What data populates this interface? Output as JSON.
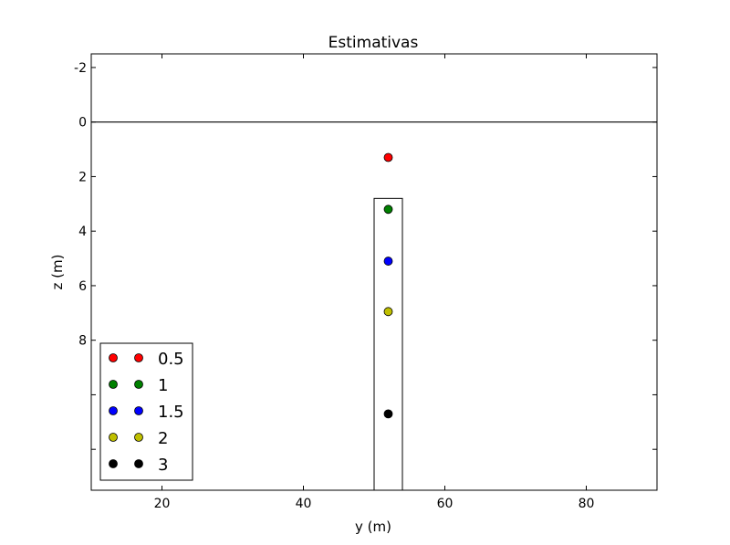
{
  "chart_data": {
    "type": "scatter",
    "title": "Estimativas",
    "xlabel": "y (m)",
    "ylabel": "z (m)",
    "xlim": [
      10,
      90
    ],
    "ylim": [
      13.5,
      -2.5
    ],
    "y_inverted": true,
    "x_ticks": [
      20,
      40,
      60,
      80
    ],
    "x_tick_labels": [
      "20",
      "40",
      "60",
      "80"
    ],
    "y_ticks": [
      -2,
      0,
      2,
      4,
      6,
      8,
      10,
      12
    ],
    "y_tick_labels": [
      "-2",
      "0",
      "2",
      "4",
      "6",
      "8",
      "",
      ""
    ],
    "grid": false,
    "surface_line": {
      "z": 0
    },
    "body_rectangle": {
      "x_min": 50,
      "x_max": 54,
      "z_top": 2.8,
      "z_bottom": 13.5
    },
    "series": [
      {
        "name": "0.5",
        "color": "#ff0000",
        "points": [
          {
            "x": 52,
            "z": 1.3
          }
        ]
      },
      {
        "name": "1",
        "color": "#008000",
        "points": [
          {
            "x": 52,
            "z": 3.2
          }
        ]
      },
      {
        "name": "1.5",
        "color": "#0000ff",
        "points": [
          {
            "x": 52,
            "z": 5.1
          }
        ]
      },
      {
        "name": "2",
        "color": "#bfbf00",
        "points": [
          {
            "x": 52,
            "z": 6.95
          }
        ]
      },
      {
        "name": "3",
        "color": "#000000",
        "points": [
          {
            "x": 52,
            "z": 10.7
          }
        ]
      }
    ],
    "legend_position": "lower-left"
  }
}
